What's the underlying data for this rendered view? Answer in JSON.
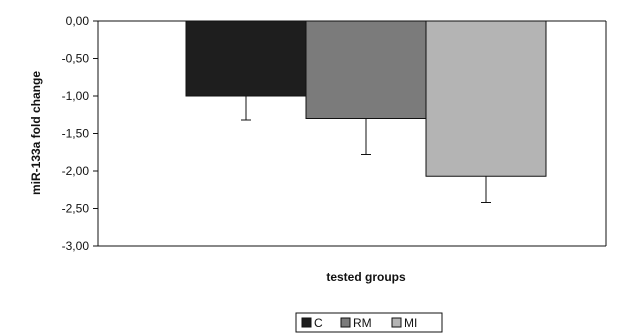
{
  "chart_data": {
    "type": "bar",
    "title": "",
    "xlabel": "tested groups",
    "ylabel": "miR-133a fold change",
    "ylim": [
      -3.0,
      0.0
    ],
    "y_ticks": [
      "0,00",
      "-0,50",
      "-1,00",
      "-1,50",
      "-2,00",
      "-2,50",
      "-3,00"
    ],
    "categories": [
      "C",
      "RM",
      "MI"
    ],
    "values": [
      -1.0,
      -1.3,
      -2.07
    ],
    "error_bars": [
      0.32,
      0.48,
      0.35
    ],
    "colors": [
      "#1e1e1e",
      "#7b7b7b",
      "#b4b4b4"
    ],
    "legend": {
      "position": "bottom",
      "entries": [
        "C",
        "RM",
        "MI"
      ]
    },
    "grid": false
  }
}
